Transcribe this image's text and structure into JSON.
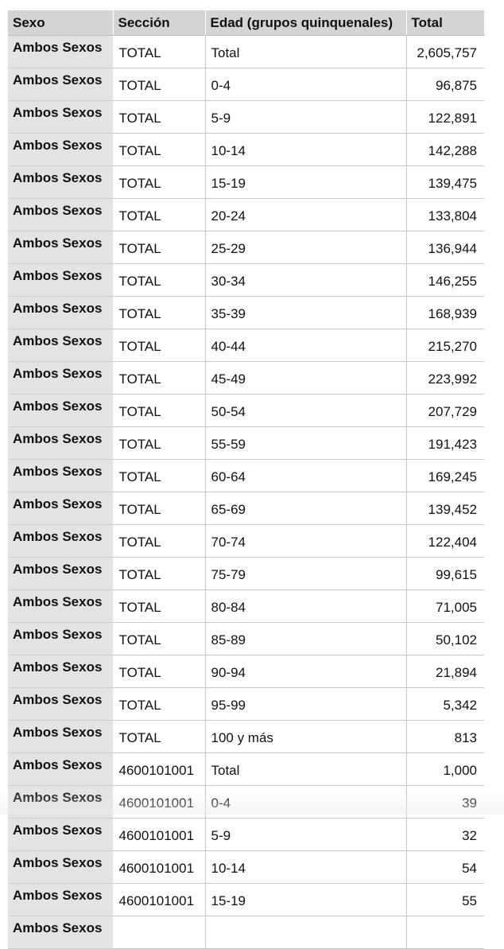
{
  "table": {
    "columns": [
      "Sexo",
      "Sección",
      "Edad (grupos quinquenales)",
      "Total"
    ],
    "rows": [
      [
        "Ambos Sexos",
        "TOTAL",
        "Total",
        "2,605,757"
      ],
      [
        "Ambos Sexos",
        "TOTAL",
        "0-4",
        "96,875"
      ],
      [
        "Ambos Sexos",
        "TOTAL",
        "5-9",
        "122,891"
      ],
      [
        "Ambos Sexos",
        "TOTAL",
        "10-14",
        "142,288"
      ],
      [
        "Ambos Sexos",
        "TOTAL",
        "15-19",
        "139,475"
      ],
      [
        "Ambos Sexos",
        "TOTAL",
        "20-24",
        "133,804"
      ],
      [
        "Ambos Sexos",
        "TOTAL",
        "25-29",
        "136,944"
      ],
      [
        "Ambos Sexos",
        "TOTAL",
        "30-34",
        "146,255"
      ],
      [
        "Ambos Sexos",
        "TOTAL",
        "35-39",
        "168,939"
      ],
      [
        "Ambos Sexos",
        "TOTAL",
        "40-44",
        "215,270"
      ],
      [
        "Ambos Sexos",
        "TOTAL",
        "45-49",
        "223,992"
      ],
      [
        "Ambos Sexos",
        "TOTAL",
        "50-54",
        "207,729"
      ],
      [
        "Ambos Sexos",
        "TOTAL",
        "55-59",
        "191,423"
      ],
      [
        "Ambos Sexos",
        "TOTAL",
        "60-64",
        "169,245"
      ],
      [
        "Ambos Sexos",
        "TOTAL",
        "65-69",
        "139,452"
      ],
      [
        "Ambos Sexos",
        "TOTAL",
        "70-74",
        "122,404"
      ],
      [
        "Ambos Sexos",
        "TOTAL",
        "75-79",
        "99,615"
      ],
      [
        "Ambos Sexos",
        "TOTAL",
        "80-84",
        "71,005"
      ],
      [
        "Ambos Sexos",
        "TOTAL",
        "85-89",
        "50,102"
      ],
      [
        "Ambos Sexos",
        "TOTAL",
        "90-94",
        "21,894"
      ],
      [
        "Ambos Sexos",
        "TOTAL",
        "95-99",
        "5,342"
      ],
      [
        "Ambos Sexos",
        "TOTAL",
        "100 y más",
        "813"
      ],
      [
        "Ambos Sexos",
        "4600101001",
        "Total",
        "1,000"
      ],
      [
        "Ambos Sexos",
        "4600101001",
        "0-4",
        "39"
      ],
      [
        "Ambos Sexos",
        "4600101001",
        "5-9",
        "32"
      ],
      [
        "Ambos Sexos",
        "4600101001",
        "10-14",
        "54"
      ],
      [
        "Ambos Sexos",
        "4600101001",
        "15-19",
        "55"
      ],
      [
        "Ambos Sexos",
        "",
        "",
        ""
      ]
    ]
  },
  "colors": {
    "header_bg": "#d4d4d4",
    "sexo_col_bg": "#e3e3e3",
    "grid_line": "#c6c6c6",
    "cell_bg": "#ffffff"
  }
}
